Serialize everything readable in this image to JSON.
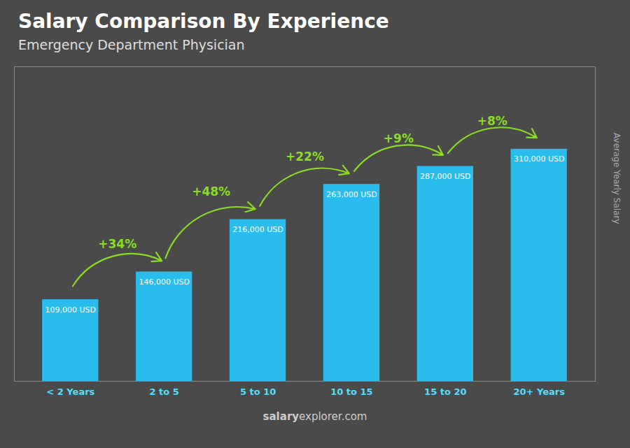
{
  "chart_data": {
    "type": "bar",
    "title": "Salary Comparison By Experience",
    "subtitle": "Emergency Department Physician",
    "ylabel": "Average Yearly Salary",
    "categories": [
      "< 2 Years",
      "2 to 5",
      "5 to 10",
      "10 to 15",
      "15 to 20",
      "20+ Years"
    ],
    "values": [
      109000,
      146000,
      216000,
      263000,
      287000,
      310000
    ],
    "value_labels": [
      "109,000 USD",
      "146,000 USD",
      "216,000 USD",
      "263,000 USD",
      "287,000 USD",
      "310,000 USD"
    ],
    "data_labels": true,
    "color": "#29BCEC",
    "ylim": [
      0,
      420000
    ],
    "tick_labels": "x",
    "grid": false,
    "annotations": [
      {
        "text": "+34%",
        "from": "< 2 Years",
        "to": "2 to 5",
        "color": "#88dd22"
      },
      {
        "text": "+48%",
        "from": "2 to 5",
        "to": "5 to 10",
        "color": "#88dd22"
      },
      {
        "text": "+22%",
        "from": "5 to 10",
        "to": "10 to 15",
        "color": "#88dd22"
      },
      {
        "text": "+9%",
        "from": "10 to 15",
        "to": "15 to 20",
        "color": "#88dd22"
      },
      {
        "text": "+8%",
        "from": "15 to 20",
        "to": "20+ Years",
        "color": "#88dd22"
      }
    ],
    "watermark": [
      "salary",
      "explorer.com"
    ]
  }
}
